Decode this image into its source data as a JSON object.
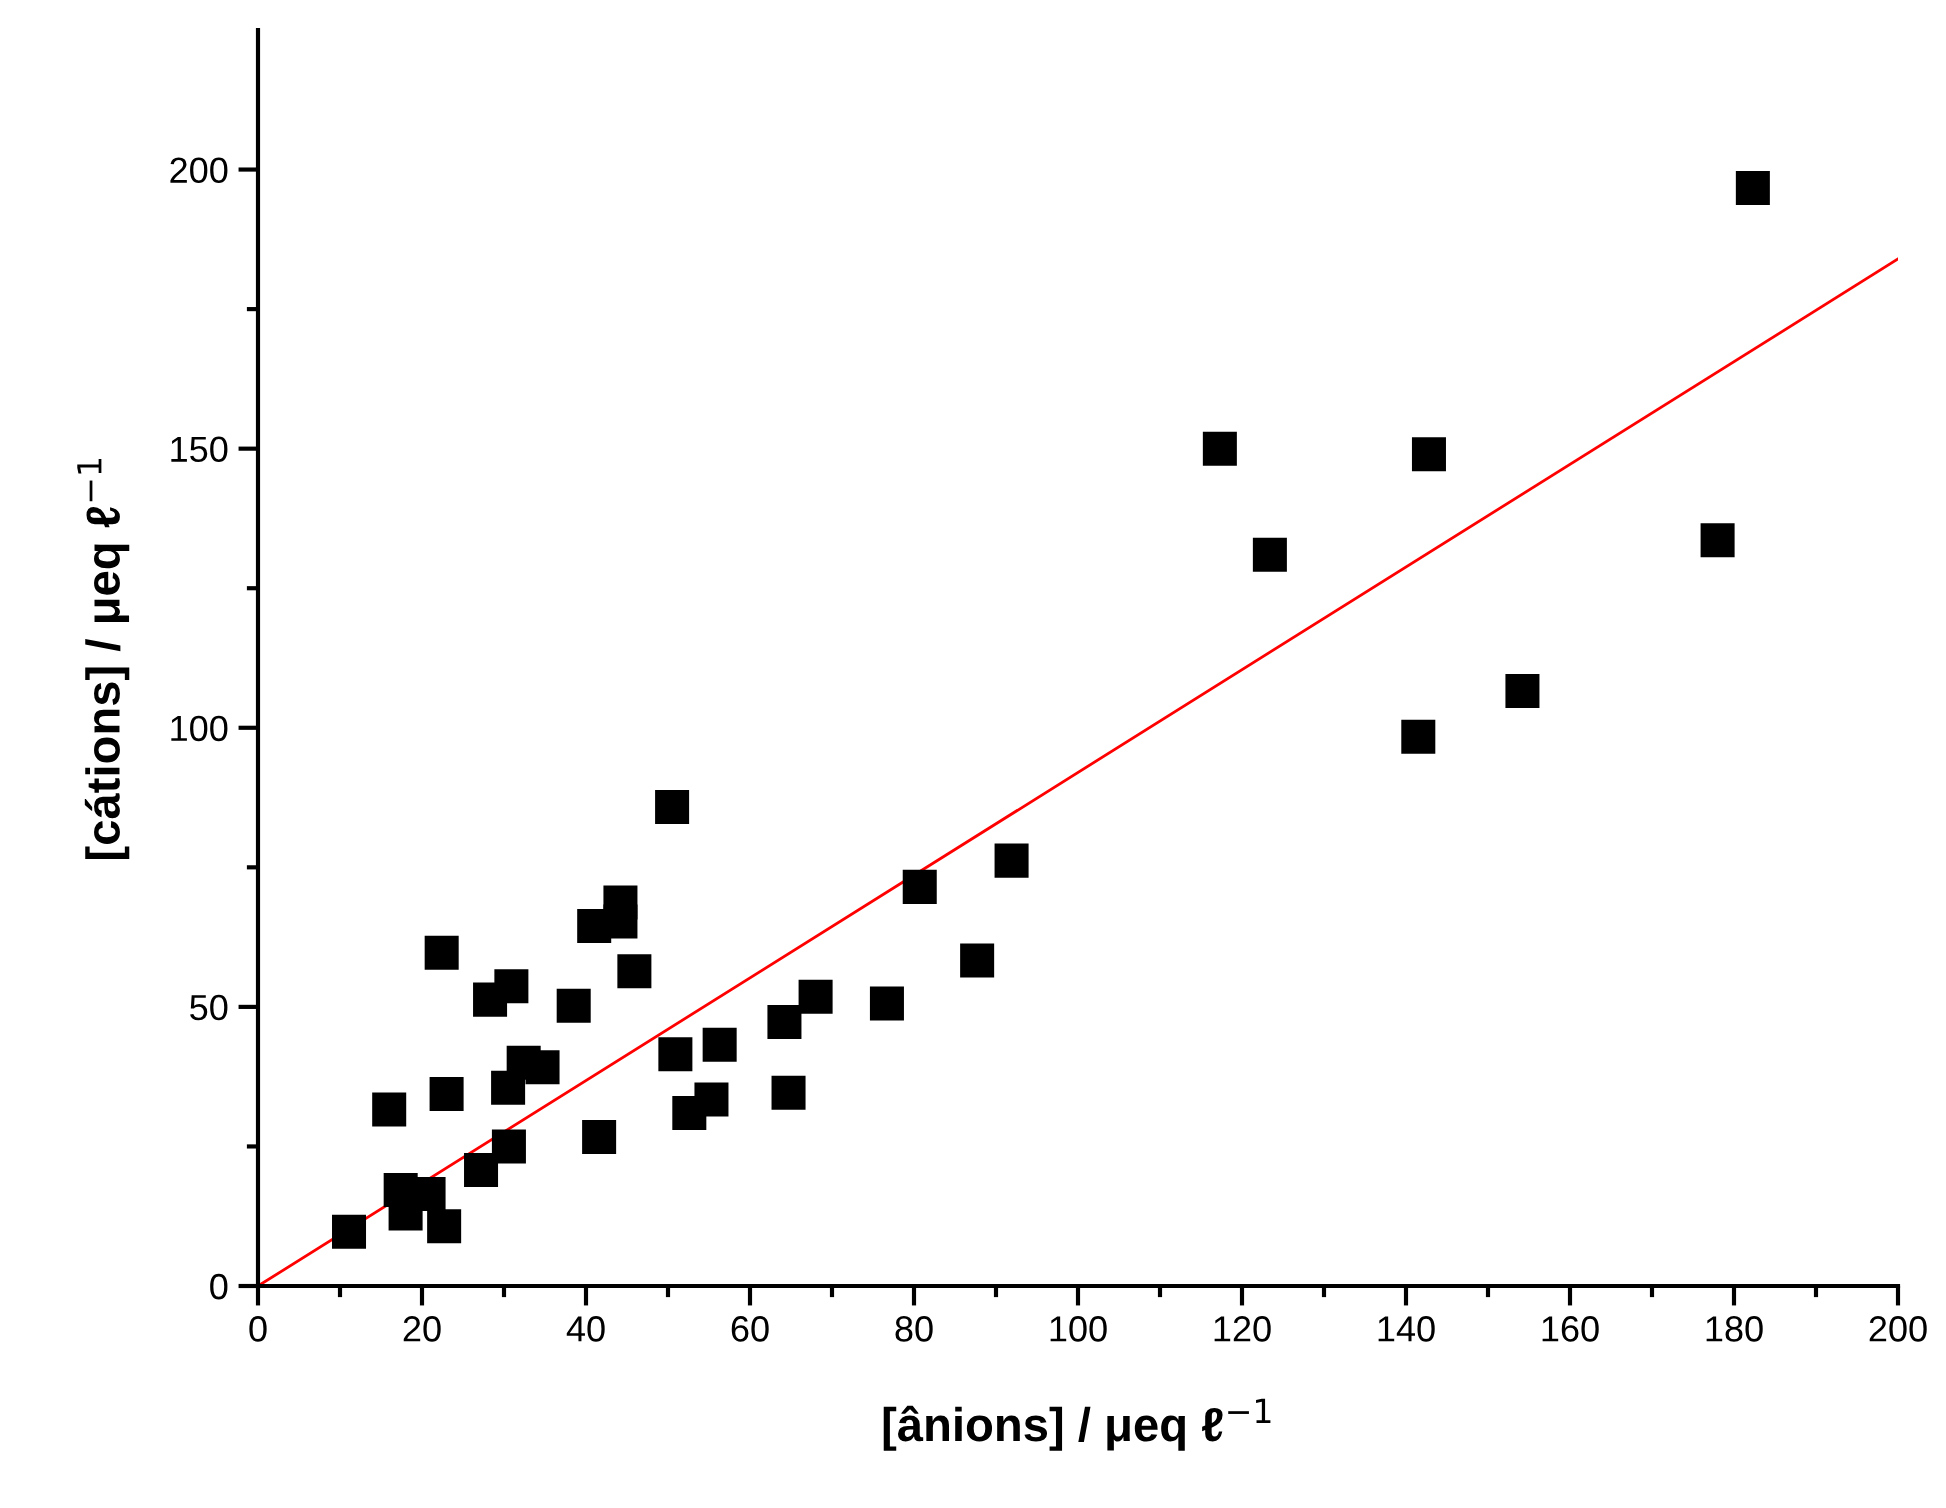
{
  "chart_data": {
    "type": "scatter",
    "xlabel": "[ânions] / μeq ℓ$^{−1}$",
    "ylabel": "[cátions] / μeq ℓ$^{−1}$",
    "xlim": [
      0,
      200
    ],
    "xticks": [
      0,
      20,
      40,
      60,
      80,
      100,
      120,
      140,
      160,
      180,
      200
    ],
    "ylim": [
      0,
      225
    ],
    "yticks": [
      0,
      50,
      100,
      150,
      200
    ],
    "grid": false,
    "legend": false,
    "marker": "square",
    "series": [
      {
        "color": "#000000",
        "x": [
          11.1,
          16.0,
          17.4,
          18.0,
          20.8,
          22.4,
          23.0,
          22.7,
          27.2,
          28.3,
          30.6,
          30.5,
          30.9,
          32.4,
          34.7,
          38.5,
          41.0,
          41.6,
          44.2,
          44.2,
          45.9,
          50.5,
          50.9,
          52.6,
          55.3,
          56.3,
          64.2,
          64.7,
          68.0,
          76.7,
          80.7,
          87.7,
          91.9,
          117.3,
          123.4,
          141.5,
          142.8,
          154.2,
          178.0,
          182.3
        ],
        "values": [
          9.7,
          31.6,
          17.2,
          13.0,
          16.5,
          59.7,
          34.4,
          10.7,
          20.8,
          51.3,
          25.0,
          35.5,
          53.7,
          40.0,
          39.2,
          50.2,
          64.5,
          26.7,
          68.7,
          65.3,
          56.4,
          85.8,
          41.5,
          31.0,
          33.4,
          43.2,
          47.3,
          34.6,
          51.8,
          50.6,
          71.5,
          58.3,
          76.2,
          150.0,
          131.0,
          98.4,
          149.0,
          106.6,
          133.6,
          196.7
        ]
      },
      {
        "type": "line",
        "color": "#ff0000",
        "marker": "none",
        "line_style": "solid",
        "x": [
          0,
          200
        ],
        "values": [
          0,
          184
        ]
      }
    ]
  }
}
